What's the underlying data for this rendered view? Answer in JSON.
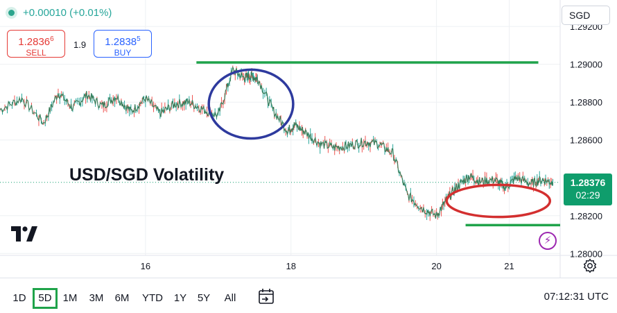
{
  "header": {
    "change": "+0.00010 (+0.01%)",
    "sell_price": "1.2836",
    "sell_price_sup": "6",
    "sell_label": "SELL",
    "spread": "1.9",
    "buy_price": "1.2838",
    "buy_price_sup": "5",
    "buy_label": "BUY",
    "currency": "SGD"
  },
  "annotation_text": "USD/SGD Volatility",
  "last_price": {
    "value": "1.28376",
    "countdown": "02:29",
    "color": "#0f9d6c"
  },
  "timeframes": [
    "1D",
    "5D",
    "1M",
    "3M",
    "6M",
    "YTD",
    "1Y",
    "5Y",
    "All"
  ],
  "active_timeframe": "5D",
  "clock": "07:12:31 UTC",
  "icons": {
    "logo": "tradingview-logo-icon",
    "bolt": "lightning-icon",
    "settings": "gear-icon",
    "range": "calendar-range-icon"
  },
  "colors": {
    "support_resistance": "#1fa34a",
    "circle_high": "#2e3a9e",
    "circle_low": "#d32f2f",
    "price_line": "#3b7d5a"
  },
  "chart_data": {
    "type": "line",
    "xlabel": "",
    "ylabel": "",
    "x_ticks": [
      "16",
      "18",
      "20",
      "21"
    ],
    "x_tick_positions_day": [
      16,
      18,
      20,
      21
    ],
    "xlim_day": [
      14.0,
      21.7
    ],
    "ylim": [
      1.2799,
      1.2934
    ],
    "y_ticks": [
      "1.29200",
      "1.29000",
      "1.28800",
      "1.28600",
      "1.28200",
      "1.28000"
    ],
    "y_tick_values": [
      1.292,
      1.29,
      1.288,
      1.286,
      1.282,
      1.28
    ],
    "series": [
      {
        "x": [
          14.0,
          14.3,
          14.6,
          14.8,
          15.0,
          15.2,
          15.4,
          15.6,
          15.8,
          16.0,
          16.2,
          16.4,
          16.6,
          16.8,
          17.0,
          17.2,
          17.35,
          17.45,
          17.55,
          17.75,
          17.95,
          18.05,
          18.2,
          18.4,
          18.6,
          18.8,
          19.0,
          19.2,
          19.4,
          19.6,
          19.8,
          20.0,
          20.15,
          20.3,
          20.45,
          20.6,
          20.8,
          20.95,
          21.1,
          21.3,
          21.45,
          21.6
        ],
        "y": [
          1.2876,
          1.2882,
          1.2869,
          1.2885,
          1.2877,
          1.2884,
          1.2878,
          1.2883,
          1.2875,
          1.2882,
          1.2874,
          1.2879,
          1.288,
          1.2876,
          1.2873,
          1.2897,
          1.2893,
          1.2894,
          1.2892,
          1.2876,
          1.2865,
          1.2868,
          1.2864,
          1.2858,
          1.2856,
          1.2857,
          1.2859,
          1.2858,
          1.2853,
          1.2831,
          1.2824,
          1.282,
          1.2829,
          1.2836,
          1.2841,
          1.2838,
          1.2839,
          1.2835,
          1.284,
          1.2837,
          1.2839,
          1.28376
        ]
      }
    ],
    "resistance_level": 1.2901,
    "support_level": 1.2815,
    "horizontal_lines": [
      {
        "y": 1.2901,
        "x_start_day": 16.7,
        "x_end_day": 21.4
      },
      {
        "y": 1.2815,
        "x_start_day": 20.4,
        "x_end_day": 21.7
      }
    ],
    "ellipses": [
      {
        "cx_day": 17.45,
        "cy": 1.2879,
        "rx_day": 0.58,
        "ry_price": 0.00182,
        "color": "#2e3a9e"
      },
      {
        "cx_day": 20.85,
        "cy": 1.28278,
        "rx_day": 0.71,
        "ry_price": 0.00085,
        "color": "#d32f2f"
      }
    ],
    "grid": true,
    "legend": "none"
  }
}
